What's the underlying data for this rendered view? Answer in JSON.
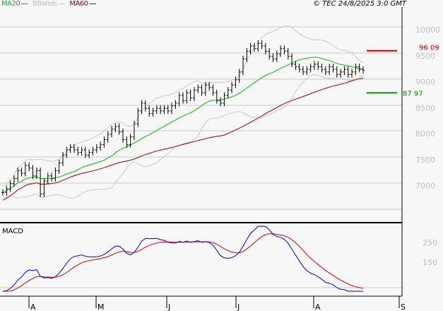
{
  "legend": {
    "ma20": "MA20",
    "bbands": "BBands",
    "ma60": "MA60"
  },
  "copyright": "© TEC 24/8/2025 3:0 GMT",
  "macd_label": "MACD",
  "colors": {
    "ma20": "#00c000",
    "bbands": "#c8c8c8",
    "ma60": "#a00000",
    "macd": "#0000e0",
    "signal": "#e00000",
    "resistance": "#d00000",
    "support": "#009000"
  },
  "chart_data": {
    "type": "line",
    "title": "",
    "price_axis": {
      "ticks": [
        7000,
        7500,
        8000,
        8500,
        9000,
        9500,
        10000
      ],
      "labels": [
        "7000",
        "7500",
        "8000",
        "8500",
        "9000",
        "9500",
        "10000"
      ],
      "ylim": [
        6600,
        10400
      ]
    },
    "macd_axis": {
      "ticks": [
        150,
        250
      ],
      "labels": [
        "150",
        "250"
      ]
    },
    "months": [
      "A",
      "M",
      "J",
      "J",
      "A",
      "S"
    ],
    "resistance": {
      "value": 9609,
      "label": "96 09"
    },
    "support": {
      "value": 8797,
      "label": "87 97"
    },
    "closes": [
      6880,
      6950,
      7050,
      7150,
      7300,
      7250,
      7400,
      7350,
      7200,
      7300,
      6850,
      7100,
      7200,
      7150,
      7300,
      7450,
      7600,
      7700,
      7750,
      7700,
      7650,
      7700,
      7600,
      7650,
      7700,
      7750,
      7800,
      7900,
      8000,
      8100,
      8150,
      8050,
      7900,
      7800,
      7950,
      8200,
      8450,
      8600,
      8500,
      8400,
      8450,
      8500,
      8450,
      8500,
      8450,
      8550,
      8600,
      8750,
      8650,
      8800,
      8700,
      8850,
      8900,
      8800,
      8950,
      8900,
      8800,
      8650,
      8600,
      8750,
      8850,
      8950,
      9050,
      9200,
      9450,
      9600,
      9700,
      9650,
      9750,
      9700,
      9600,
      9500,
      9450,
      9550,
      9650,
      9600,
      9500,
      9350,
      9300,
      9250,
      9200,
      9250,
      9300,
      9350,
      9300,
      9250,
      9200,
      9300,
      9250,
      9150,
      9200,
      9250,
      9150,
      9200,
      9300,
      9250,
      9230
    ]
  }
}
